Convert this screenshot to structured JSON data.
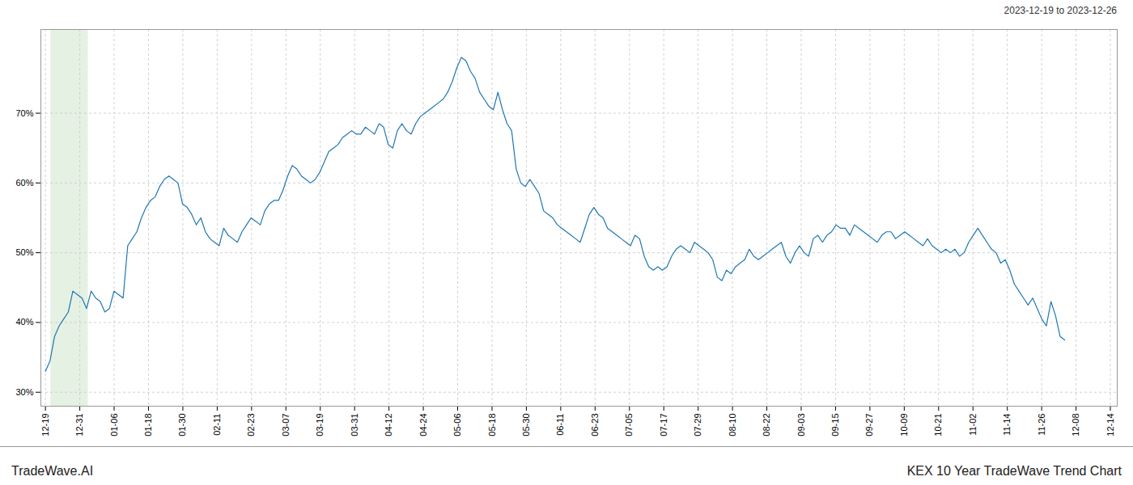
{
  "chart_data": {
    "type": "line",
    "title": "KEX 10 Year TradeWave Trend Chart",
    "subtitle": "2023-12-19 to 2023-12-26",
    "annotations": [
      "TradeWave.AI"
    ],
    "color": "#1f77b4",
    "grid": true,
    "highlight": {
      "range": [
        1.17,
        9.36
      ],
      "color": "#d4e8d0"
    },
    "values": [
      33.0,
      34.5,
      38.0,
      39.5,
      40.5,
      41.5,
      44.5,
      44.0,
      43.5,
      42.0,
      44.5,
      43.5,
      43.0,
      41.5,
      42.0,
      44.5,
      44.0,
      43.5,
      51.0,
      52.0,
      53.0,
      55.0,
      56.5,
      57.5,
      58.0,
      59.5,
      60.5,
      61.0,
      60.5,
      60.0,
      57.0,
      56.5,
      55.5,
      54.0,
      55.0,
      53.0,
      52.0,
      51.5,
      51.0,
      53.5,
      52.5,
      52.0,
      51.5,
      53.0,
      54.0,
      55.0,
      54.5,
      54.0,
      56.0,
      57.0,
      57.5,
      57.5,
      59.0,
      61.0,
      62.5,
      62.0,
      61.0,
      60.5,
      60.0,
      60.5,
      61.5,
      63.0,
      64.5,
      65.0,
      65.5,
      66.5,
      67.0,
      67.5,
      67.0,
      67.0,
      68.0,
      67.5,
      67.0,
      68.5,
      68.0,
      65.5,
      65.0,
      67.5,
      68.5,
      67.5,
      67.0,
      68.5,
      69.5,
      70.0,
      70.5,
      71.0,
      71.5,
      72.0,
      73.0,
      74.5,
      76.5,
      78.0,
      77.5,
      76.0,
      75.0,
      73.0,
      72.0,
      71.0,
      70.5,
      73.0,
      70.5,
      68.5,
      67.5,
      62.0,
      60.0,
      59.5,
      60.5,
      59.5,
      58.5,
      56.0,
      55.5,
      55.0,
      54.0,
      53.5,
      53.0,
      52.5,
      52.0,
      51.5,
      53.5,
      55.5,
      56.5,
      55.5,
      55.0,
      53.5,
      53.0,
      52.5,
      52.0,
      51.5,
      51.0,
      52.5,
      52.0,
      49.5,
      48.0,
      47.5,
      48.0,
      47.5,
      48.0,
      49.5,
      50.5,
      51.0,
      50.5,
      50.0,
      51.5,
      51.0,
      50.5,
      50.0,
      49.0,
      46.5,
      46.0,
      47.5,
      47.0,
      48.0,
      48.5,
      49.0,
      50.5,
      49.5,
      49.0,
      49.5,
      50.0,
      50.5,
      51.0,
      51.5,
      49.5,
      48.5,
      50.0,
      51.0,
      50.0,
      49.5,
      52.0,
      52.5,
      51.5,
      52.5,
      53.0,
      54.0,
      53.5,
      53.5,
      52.5,
      54.0,
      53.5,
      53.0,
      52.5,
      52.0,
      51.5,
      52.5,
      53.0,
      53.0,
      52.0,
      52.5,
      53.0,
      52.5,
      52.0,
      51.5,
      51.0,
      52.0,
      51.0,
      50.5,
      50.0,
      50.5,
      50.0,
      50.5,
      49.5,
      50.0,
      51.5,
      52.5,
      53.5,
      52.5,
      51.5,
      50.5,
      50.0,
      48.5,
      49.0,
      47.5,
      45.5,
      44.5,
      43.5,
      42.5,
      43.5,
      42.0,
      40.5,
      39.5,
      43.0,
      41.0,
      38.0,
      37.5
    ],
    "xlim": [
      -1,
      234.5
    ],
    "xticks": [
      {
        "value": 0,
        "label": "12-19"
      },
      {
        "value": 7.516,
        "label": "12-31"
      },
      {
        "value": 15.032,
        "label": "01-06"
      },
      {
        "value": 22.548,
        "label": "01-18"
      },
      {
        "value": 30.065,
        "label": "01-30"
      },
      {
        "value": 37.581,
        "label": "02-11"
      },
      {
        "value": 45.097,
        "label": "02-23"
      },
      {
        "value": 52.613,
        "label": "03-07"
      },
      {
        "value": 60.129,
        "label": "03-19"
      },
      {
        "value": 67.645,
        "label": "03-31"
      },
      {
        "value": 75.161,
        "label": "04-12"
      },
      {
        "value": 82.677,
        "label": "04-24"
      },
      {
        "value": 90.194,
        "label": "05-06"
      },
      {
        "value": 97.71,
        "label": "05-18"
      },
      {
        "value": 105.226,
        "label": "05-30"
      },
      {
        "value": 112.742,
        "label": "06-11"
      },
      {
        "value": 120.258,
        "label": "06-23"
      },
      {
        "value": 127.774,
        "label": "07-05"
      },
      {
        "value": 135.29,
        "label": "07-17"
      },
      {
        "value": 142.806,
        "label": "07-29"
      },
      {
        "value": 150.323,
        "label": "08-10"
      },
      {
        "value": 157.839,
        "label": "08-22"
      },
      {
        "value": 165.355,
        "label": "09-03"
      },
      {
        "value": 172.871,
        "label": "09-15"
      },
      {
        "value": 180.387,
        "label": "09-27"
      },
      {
        "value": 187.903,
        "label": "10-09"
      },
      {
        "value": 195.419,
        "label": "10-21"
      },
      {
        "value": 202.935,
        "label": "11-02"
      },
      {
        "value": 210.452,
        "label": "11-14"
      },
      {
        "value": 217.968,
        "label": "11-26"
      },
      {
        "value": 225.484,
        "label": "12-08"
      },
      {
        "value": 233,
        "label": "12-14"
      }
    ],
    "ylim": [
      28,
      82
    ],
    "yticks": [
      {
        "value": 30,
        "label": "30%"
      },
      {
        "value": 40,
        "label": "40%"
      },
      {
        "value": 50,
        "label": "50%"
      },
      {
        "value": 60,
        "label": "60%"
      },
      {
        "value": 70,
        "label": "70%"
      }
    ]
  }
}
